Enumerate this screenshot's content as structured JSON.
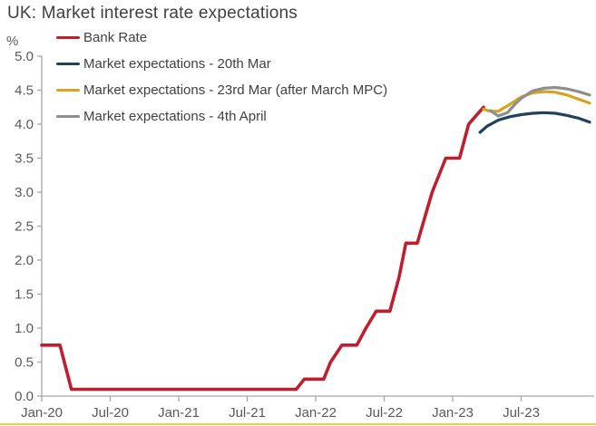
{
  "page": {
    "accent_border_color": "#F2D23C",
    "background_color": "#ffffff"
  },
  "chart_data": {
    "type": "line",
    "title": "UK: Market interest rate expectations",
    "xlabel": "",
    "ylabel": "%",
    "ylim": [
      0.0,
      5.0
    ],
    "ytick_step": 0.5,
    "grid": false,
    "legend_position": "top-left",
    "axis_color": "#A6A6A6",
    "tick_label_color": "#595959",
    "x_unit": "months since Jan-2020",
    "x_ticks": [
      {
        "m": 0,
        "label": "Jan-20"
      },
      {
        "m": 6,
        "label": "Jul-20"
      },
      {
        "m": 12,
        "label": "Jan-21"
      },
      {
        "m": 18,
        "label": "Jul-21"
      },
      {
        "m": 24,
        "label": "Jan-22"
      },
      {
        "m": 30,
        "label": "Jul-22"
      },
      {
        "m": 36,
        "label": "Jan-23"
      },
      {
        "m": 42,
        "label": "Jul-23"
      }
    ],
    "series": [
      {
        "name": "Bank Rate",
        "color": "#BE1E2D",
        "width": 3.6,
        "points": [
          [
            0,
            0.75
          ],
          [
            1.6,
            0.75
          ],
          [
            2.6,
            0.1
          ],
          [
            22.3,
            0.1
          ],
          [
            23,
            0.25
          ],
          [
            24.7,
            0.25
          ],
          [
            25.3,
            0.5
          ],
          [
            26.3,
            0.75
          ],
          [
            27.6,
            0.75
          ],
          [
            28.4,
            1.0
          ],
          [
            29.3,
            1.25
          ],
          [
            30.5,
            1.25
          ],
          [
            31.3,
            1.75
          ],
          [
            31.9,
            2.25
          ],
          [
            32.9,
            2.25
          ],
          [
            34.2,
            3.0
          ],
          [
            35.4,
            3.5
          ],
          [
            36.6,
            3.5
          ],
          [
            37.4,
            4.0
          ],
          [
            38.7,
            4.25
          ]
        ]
      },
      {
        "name": "Market expectations - 20th Mar",
        "color": "#1E415F",
        "width": 3.2,
        "points": [
          [
            38.4,
            3.88
          ],
          [
            39,
            3.97
          ],
          [
            40,
            4.06
          ],
          [
            41,
            4.11
          ],
          [
            42,
            4.14
          ],
          [
            43,
            4.16
          ],
          [
            44,
            4.17
          ],
          [
            45,
            4.16
          ],
          [
            46,
            4.13
          ],
          [
            47,
            4.09
          ],
          [
            48,
            4.03
          ]
        ]
      },
      {
        "name": "Market expectations - 23rd Mar (after March MPC)",
        "color": "#D6A51F",
        "width": 3.2,
        "points": [
          [
            38.7,
            4.22
          ],
          [
            39.3,
            4.19
          ],
          [
            40,
            4.19
          ],
          [
            41,
            4.29
          ],
          [
            42,
            4.4
          ],
          [
            43,
            4.46
          ],
          [
            44,
            4.48
          ],
          [
            45,
            4.47
          ],
          [
            46,
            4.43
          ],
          [
            47,
            4.37
          ],
          [
            48,
            4.31
          ]
        ]
      },
      {
        "name": "Market expectations - 4th April",
        "color": "#8E8E8E",
        "width": 3.2,
        "points": [
          [
            39.3,
            4.2
          ],
          [
            40,
            4.12
          ],
          [
            40.8,
            4.17
          ],
          [
            41.5,
            4.3
          ],
          [
            42,
            4.38
          ],
          [
            43,
            4.49
          ],
          [
            44,
            4.53
          ],
          [
            45,
            4.54
          ],
          [
            46,
            4.52
          ],
          [
            47,
            4.48
          ],
          [
            48,
            4.43
          ]
        ]
      }
    ]
  }
}
